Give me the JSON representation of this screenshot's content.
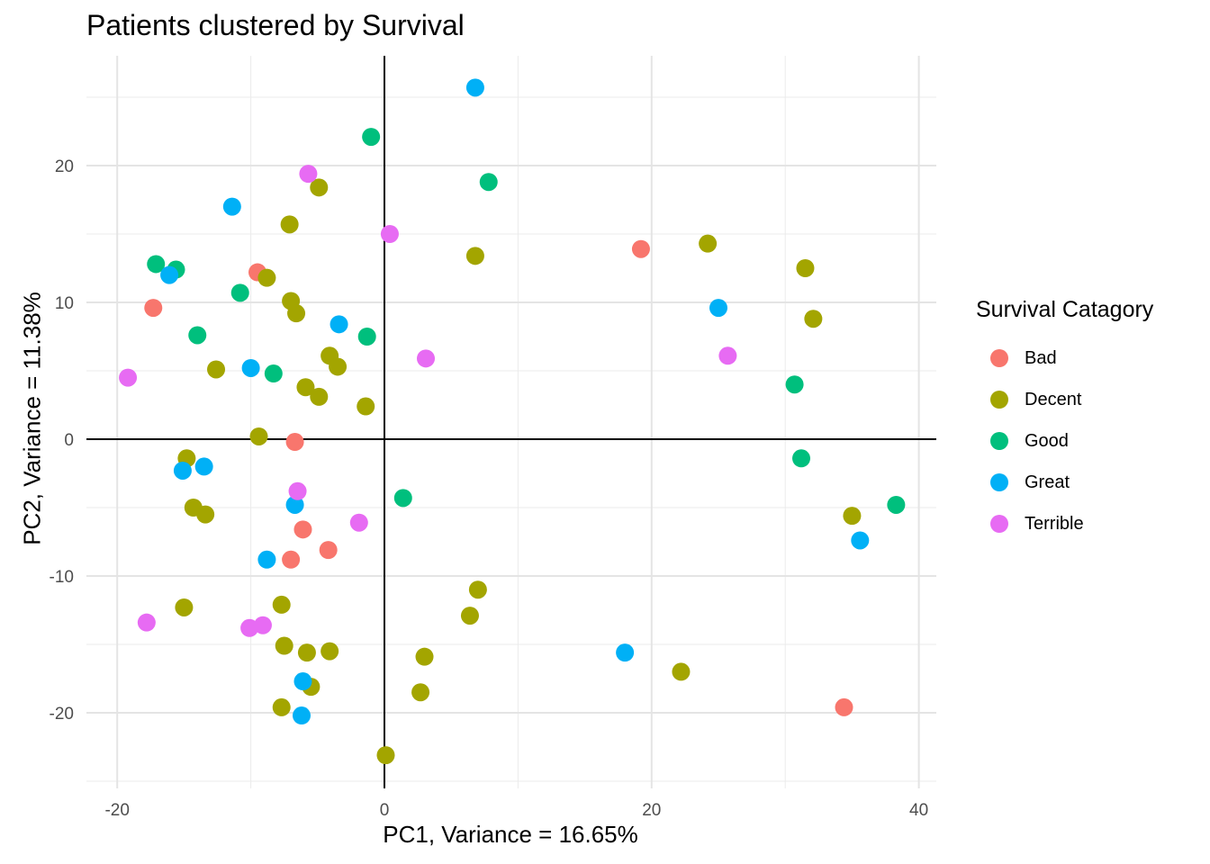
{
  "chart_data": {
    "type": "scatter",
    "title": "Patients clustered by Survival",
    "xlabel": "PC1, Variance = 16.65%",
    "ylabel": "PC2, Variance = 11.38%",
    "xlim": [
      -22,
      41
    ],
    "ylim": [
      -25.5,
      28
    ],
    "x_ticks": [
      -20,
      0,
      20,
      40
    ],
    "x_tick_labels": [
      "-20",
      "0",
      "20",
      "40"
    ],
    "y_ticks": [
      -20,
      -10,
      0,
      10,
      20
    ],
    "y_tick_labels": [
      "-20",
      "-10",
      "0",
      "10",
      "20"
    ],
    "grid": true,
    "reference_lines": {
      "x": 0,
      "y": 0
    },
    "legend": {
      "title": "Survival Catagory",
      "position": "right"
    },
    "series": [
      {
        "name": "Bad",
        "color": "#F8766D",
        "points": [
          [
            -9.5,
            12.2
          ],
          [
            -17.3,
            9.6
          ],
          [
            -6.7,
            -0.2
          ],
          [
            -6.1,
            -6.6
          ],
          [
            -4.2,
            -8.1
          ],
          [
            -7.0,
            -8.8
          ],
          [
            19.2,
            13.9
          ],
          [
            34.4,
            -19.6
          ]
        ]
      },
      {
        "name": "Decent",
        "color": "#A3A500",
        "points": [
          [
            -4.9,
            18.4
          ],
          [
            -7.1,
            15.7
          ],
          [
            -8.8,
            11.8
          ],
          [
            -7.0,
            10.1
          ],
          [
            -6.6,
            9.2
          ],
          [
            -4.1,
            6.1
          ],
          [
            -3.5,
            5.3
          ],
          [
            -12.6,
            5.1
          ],
          [
            -5.9,
            3.8
          ],
          [
            -4.9,
            3.1
          ],
          [
            -1.4,
            2.4
          ],
          [
            -9.4,
            0.2
          ],
          [
            -14.8,
            -1.4
          ],
          [
            -14.3,
            -5.0
          ],
          [
            -13.4,
            -5.5
          ],
          [
            -15.0,
            -12.3
          ],
          [
            -7.7,
            -12.1
          ],
          [
            -7.5,
            -15.1
          ],
          [
            -5.8,
            -15.6
          ],
          [
            -4.1,
            -15.5
          ],
          [
            -5.5,
            -18.1
          ],
          [
            -7.7,
            -19.6
          ],
          [
            0.1,
            -23.1
          ],
          [
            3.0,
            -15.9
          ],
          [
            2.7,
            -18.5
          ],
          [
            6.4,
            -12.9
          ],
          [
            7.0,
            -11.0
          ],
          [
            6.8,
            13.4
          ],
          [
            24.2,
            14.3
          ],
          [
            31.5,
            12.5
          ],
          [
            32.1,
            8.8
          ],
          [
            35.0,
            -5.6
          ],
          [
            22.2,
            -17.0
          ]
        ]
      },
      {
        "name": "Good",
        "color": "#00BF7D",
        "points": [
          [
            -1.0,
            22.1
          ],
          [
            7.8,
            18.8
          ],
          [
            -17.1,
            12.8
          ],
          [
            -15.6,
            12.4
          ],
          [
            -10.8,
            10.7
          ],
          [
            -14.0,
            7.6
          ],
          [
            -8.3,
            4.8
          ],
          [
            -1.3,
            7.5
          ],
          [
            1.4,
            -4.3
          ],
          [
            30.7,
            4.0
          ],
          [
            31.2,
            -1.4
          ],
          [
            38.3,
            -4.8
          ]
        ]
      },
      {
        "name": "Great",
        "color": "#00B0F6",
        "points": [
          [
            6.8,
            25.7
          ],
          [
            -11.4,
            17.0
          ],
          [
            -16.1,
            12.0
          ],
          [
            -3.4,
            8.4
          ],
          [
            -10.0,
            5.2
          ],
          [
            -15.1,
            -2.3
          ],
          [
            -13.5,
            -2.0
          ],
          [
            -6.7,
            -4.8
          ],
          [
            -8.8,
            -8.8
          ],
          [
            -6.1,
            -17.7
          ],
          [
            -6.2,
            -20.2
          ],
          [
            25.0,
            9.6
          ],
          [
            18.0,
            -15.6
          ],
          [
            35.6,
            -7.4
          ]
        ]
      },
      {
        "name": "Terrible",
        "color": "#E76BF3",
        "points": [
          [
            -5.7,
            19.4
          ],
          [
            0.4,
            15.0
          ],
          [
            -19.2,
            4.5
          ],
          [
            3.1,
            5.9
          ],
          [
            -6.5,
            -3.8
          ],
          [
            -1.9,
            -6.1
          ],
          [
            -17.8,
            -13.4
          ],
          [
            -10.1,
            -13.8
          ],
          [
            -9.1,
            -13.6
          ],
          [
            25.7,
            6.1
          ]
        ]
      }
    ]
  }
}
